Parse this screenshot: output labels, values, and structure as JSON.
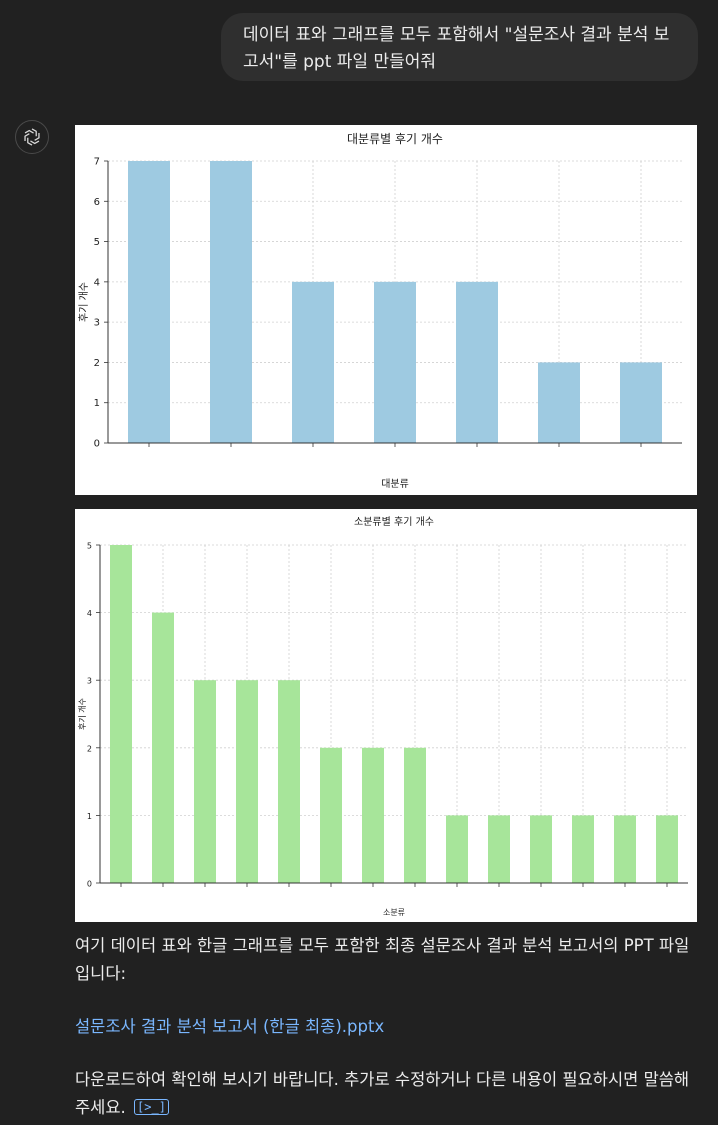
{
  "user_message": "데이터 표와 그래프를 모두 포함해서 \"설문조사 결과 분석 보고서\"를 ppt 파일 만들어줘",
  "assistant": {
    "avatar_icon": "openai-logo-icon",
    "reply_text": "여기 데이터 표와 한글 그래프를 모두 포함한 최종 설문조사 결과 분석 보고서의 PPT 파일입니다:",
    "file_link": "설문조사 결과 분석 보고서 (한글 최종).pptx",
    "closing_text": "다운로드하여 확인해 보시기 바랍니다. 추가로 수정하거나 다른 내용이 필요하시면 말씀해 주세요.",
    "code_icon_label": "[>_]"
  },
  "chart_data": [
    {
      "type": "bar",
      "title": "대분류별 후기 개수",
      "xlabel": "대분류",
      "ylabel": "후기 개수",
      "ylim": [
        0,
        7
      ],
      "yticks": [
        0,
        1,
        2,
        3,
        4,
        5,
        6,
        7
      ],
      "grid": true,
      "color": "#9ecae1",
      "categories": [
        "",
        "",
        "",
        "",
        "",
        "",
        ""
      ],
      "values": [
        7,
        7,
        4,
        4,
        4,
        2,
        2
      ]
    },
    {
      "type": "bar",
      "title": "소분류별 후기 개수",
      "xlabel": "소분류",
      "ylabel": "후기 개수",
      "ylim": [
        0,
        5
      ],
      "yticks": [
        0,
        1,
        2,
        3,
        4,
        5
      ],
      "grid": true,
      "color": "#a7e59a",
      "categories": [
        "",
        "",
        "",
        "",
        "",
        "",
        "",
        "",
        "",
        "",
        "",
        "",
        "",
        ""
      ],
      "values": [
        5,
        4,
        3,
        3,
        3,
        2,
        2,
        2,
        1,
        1,
        1,
        1,
        1,
        1
      ]
    }
  ]
}
